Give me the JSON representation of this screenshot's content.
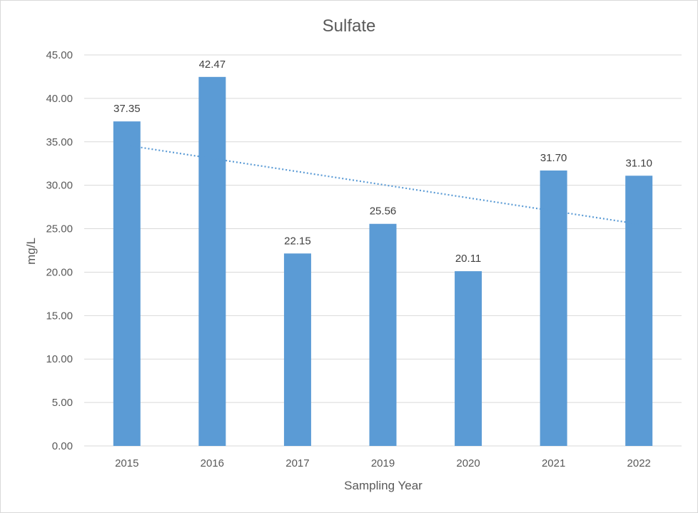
{
  "chart_data": {
    "type": "bar",
    "title": "Sulfate",
    "xlabel": "Sampling Year",
    "ylabel": "mg/L",
    "categories": [
      "2015",
      "2016",
      "2017",
      "2019",
      "2020",
      "2021",
      "2022"
    ],
    "values": [
      37.35,
      42.47,
      22.15,
      25.56,
      20.11,
      31.7,
      31.1
    ],
    "data_labels": [
      "37.35",
      "42.47",
      "22.15",
      "25.56",
      "20.11",
      "31.70",
      "31.10"
    ],
    "ylim": [
      0,
      45
    ],
    "yticks": [
      "0.00",
      "5.00",
      "10.00",
      "15.00",
      "20.00",
      "25.00",
      "30.00",
      "35.00",
      "40.00",
      "45.00"
    ],
    "grid": true,
    "legend": "none",
    "trendline": {
      "type": "linear",
      "style": "dotted"
    },
    "colors": {
      "bar": "#5b9bd5",
      "trendline": "#5b9bd5",
      "grid": "#d9d9d9",
      "text": "#595959"
    }
  }
}
